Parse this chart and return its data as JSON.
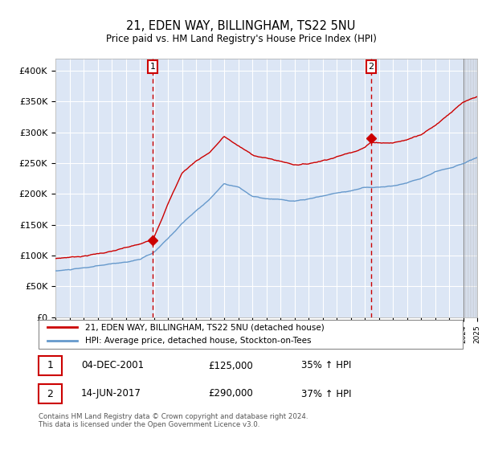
{
  "title": "21, EDEN WAY, BILLINGHAM, TS22 5NU",
  "subtitle": "Price paid vs. HM Land Registry's House Price Index (HPI)",
  "red_label": "21, EDEN WAY, BILLINGHAM, TS22 5NU (detached house)",
  "blue_label": "HPI: Average price, detached house, Stockton-on-Tees",
  "annotation1": {
    "num": "1",
    "date": "04-DEC-2001",
    "price": "£125,000",
    "pct": "35% ↑ HPI"
  },
  "annotation2": {
    "num": "2",
    "date": "14-JUN-2017",
    "price": "£290,000",
    "pct": "37% ↑ HPI"
  },
  "footer": "Contains HM Land Registry data © Crown copyright and database right 2024.\nThis data is licensed under the Open Government Licence v3.0.",
  "ylim": [
    0,
    420000
  ],
  "yticks": [
    0,
    50000,
    100000,
    150000,
    200000,
    250000,
    300000,
    350000,
    400000
  ],
  "ytick_labels": [
    "£0",
    "£50K",
    "£100K",
    "£150K",
    "£200K",
    "£250K",
    "£300K",
    "£350K",
    "£400K"
  ],
  "bg_color": "#dce6f5",
  "red_color": "#cc0000",
  "blue_color": "#6699cc",
  "marker1_x": 2001.92,
  "marker1_y": 125000,
  "marker2_x": 2017.45,
  "marker2_y": 290000,
  "xmin": 1995,
  "xmax": 2025,
  "hatch_start": 2024.0
}
